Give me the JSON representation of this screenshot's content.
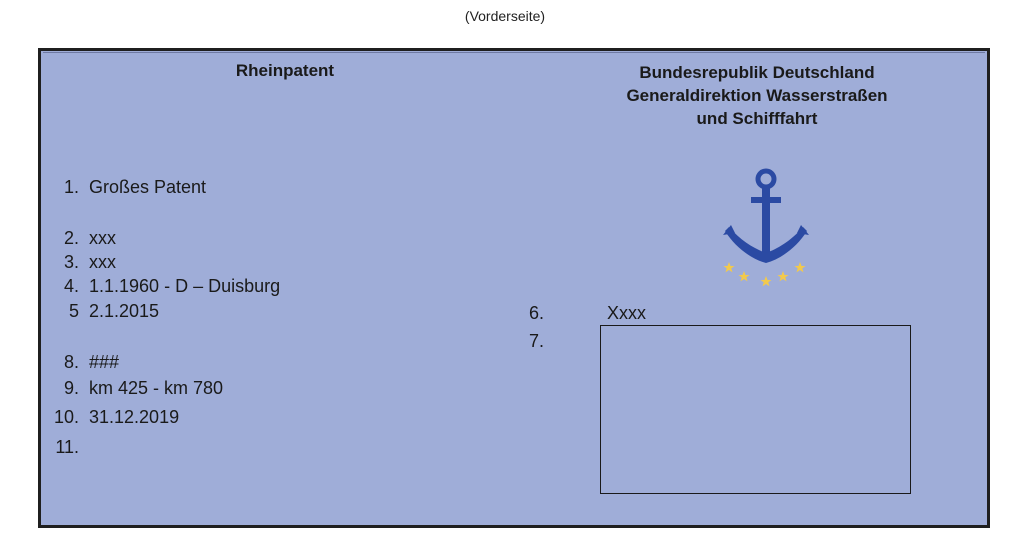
{
  "caption": "(Vorderseite)",
  "card": {
    "title": "Rheinpatent",
    "issuer_lines": [
      "Bundesrepublik Deutschland",
      "Generaldirektion Wasserstraßen",
      "und Schifffahrt"
    ],
    "fields": [
      {
        "num": "1.",
        "value": "Großes Patent"
      },
      {
        "num": "2.",
        "value": "xxx"
      },
      {
        "num": "3.",
        "value": "xxx"
      },
      {
        "num": "4.",
        "value": "1.1.1960 - D – Duisburg"
      },
      {
        "num": "5",
        "value": "2.1.2015"
      },
      {
        "num": "8.",
        "value": "###"
      },
      {
        "num": "9.",
        "value": "km 425 - km 780"
      },
      {
        "num": "10.",
        "value": "31.12.2019"
      },
      {
        "num": "11.",
        "value": ""
      }
    ],
    "field6_num": "6.",
    "field6_value": "Xxxx",
    "field7_num": "7.",
    "colors": {
      "background": "#9fadd8",
      "anchor": "#2b4aa3",
      "stars": "#f2c94c",
      "border": "#1f1f1f"
    },
    "emblem_icon": "anchor-icon"
  }
}
